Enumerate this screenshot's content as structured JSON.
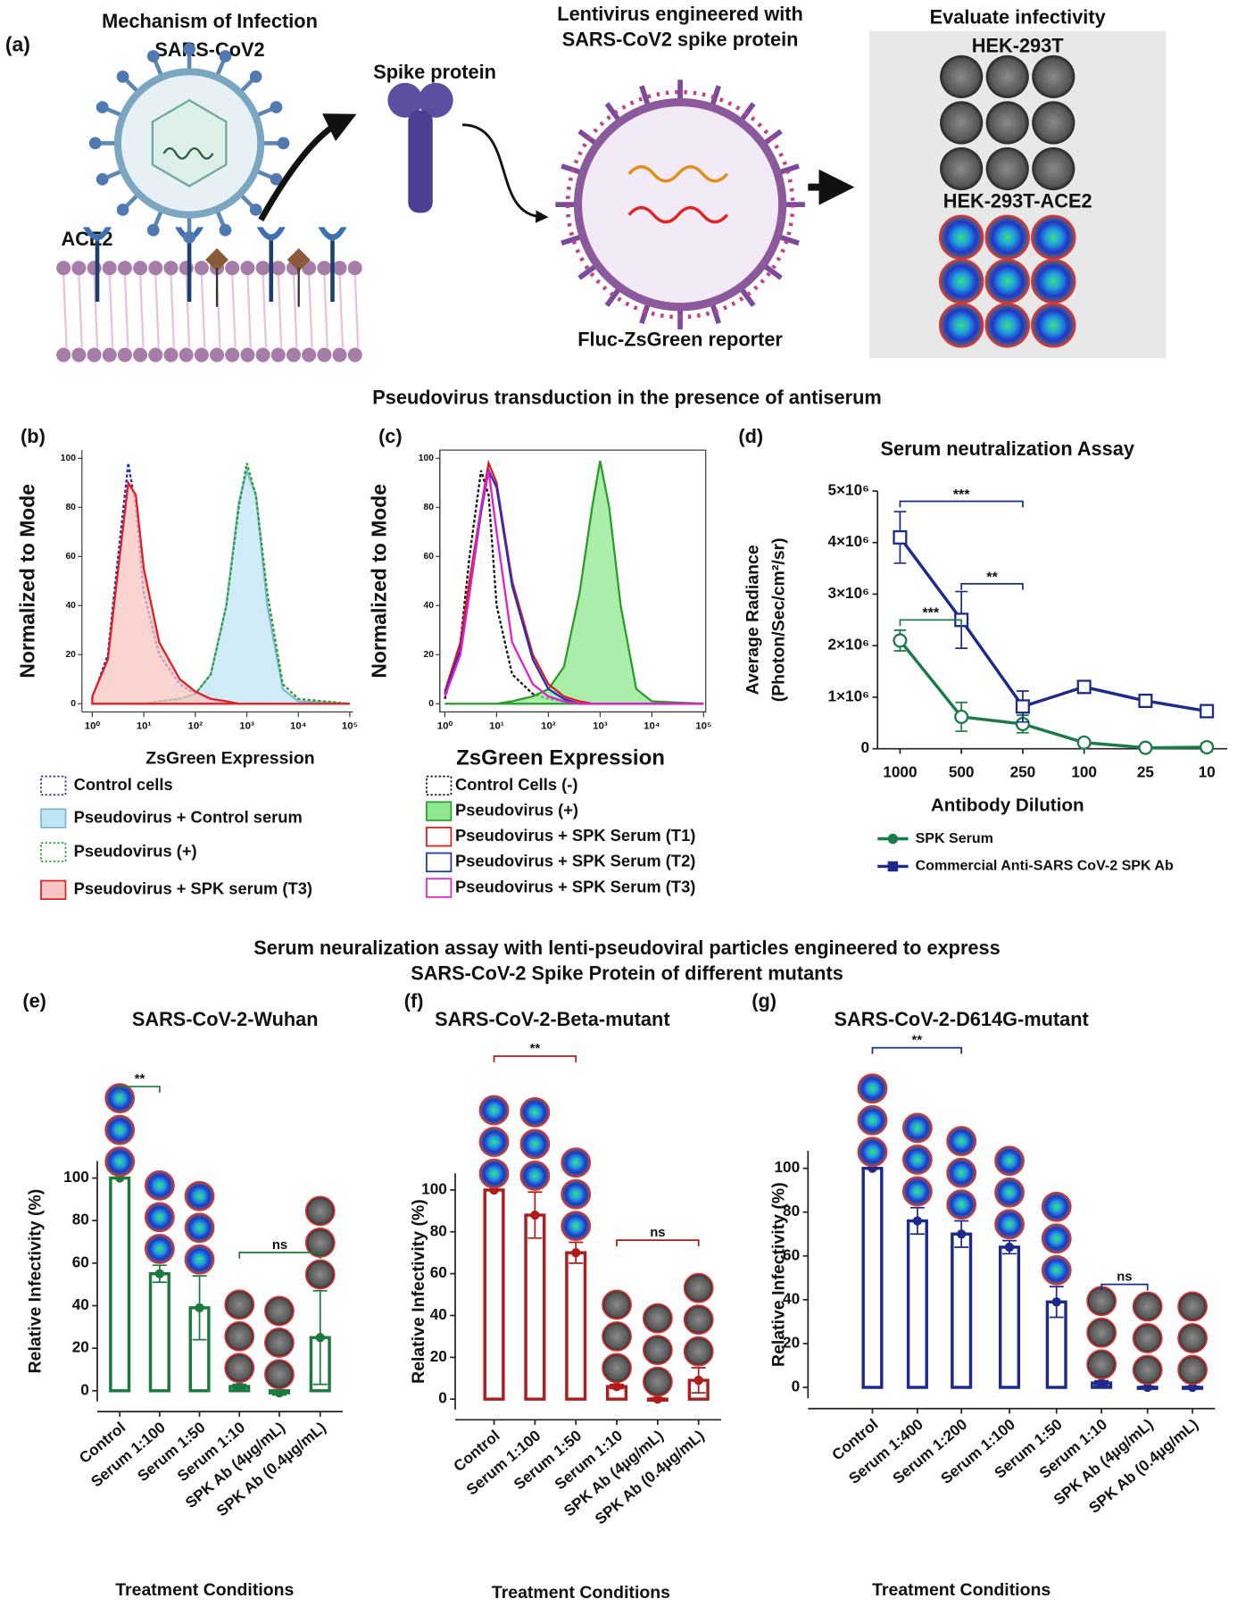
{
  "panel_a": {
    "label": "(a)",
    "left_title": [
      "Mechanism of Infection",
      "SARS-CoV2"
    ],
    "ace2": "ACE2",
    "spike": "Spike protein",
    "lenti_title": [
      "Lentivirus engineered with",
      "SARS-CoV2 spike protein"
    ],
    "reporter": "Fluc-ZsGreen reporter",
    "evaluate": "Evaluate infectivity",
    "cell1": "HEK-293T",
    "cell2": "HEK-293T-ACE2"
  },
  "section_titles": [
    "Pseudovirus transduction in the presence of antiserum",
    "Serum neuralization assay with lenti-pseudoviral particles engineered to express",
    "SARS-CoV-2 Spike Protein of different mutants"
  ],
  "chart_data": [
    {
      "type": "flow",
      "panel_label": "(b)",
      "xlabel": "ZsGreen Expression",
      "ylabel": "Normalized to Mode",
      "xlog": true,
      "x": [
        1,
        2,
        3,
        5,
        7,
        10,
        20,
        50,
        100,
        200,
        400,
        700,
        1000,
        1500,
        2500,
        5000,
        10000,
        100000
      ],
      "xlim": [
        0.63,
        115000
      ],
      "xticks": [
        {
          "value": 1,
          "label": "10⁰"
        },
        {
          "value": 10,
          "label": "10¹"
        },
        {
          "value": 100,
          "label": "10²"
        },
        {
          "value": 1000,
          "label": "10³"
        },
        {
          "value": 10000,
          "label": "10⁴"
        },
        {
          "value": 100000,
          "label": "10⁵"
        }
      ],
      "ylim": [
        0,
        100
      ],
      "yticks": [
        0,
        20,
        40,
        60,
        80,
        100
      ],
      "series": [
        {
          "name": "Control cells",
          "color": "#1f2fbf",
          "dash": true,
          "values": [
            2,
            20,
            55,
            98,
            80,
            45,
            20,
            8,
            4,
            2,
            1,
            0,
            0,
            0,
            0,
            0,
            0,
            0
          ]
        },
        {
          "name": "Pseudovirus + Control serum",
          "color": "#7fb6d8",
          "fill": "#bfe6f5",
          "values": [
            0,
            0,
            0,
            0,
            0,
            0,
            1,
            2,
            4,
            12,
            40,
            82,
            95,
            85,
            40,
            6,
            1,
            0
          ]
        },
        {
          "name": "Pseudovirus (+)",
          "color": "#2aa02a",
          "dash": true,
          "values": [
            0,
            0,
            0,
            0,
            0,
            0,
            1,
            2,
            4,
            12,
            40,
            80,
            98,
            85,
            45,
            8,
            2,
            0
          ]
        },
        {
          "name": "Pseudovirus + SPK serum (T3)",
          "color": "#e02020",
          "fill": "#f7c6c2",
          "values": [
            3,
            18,
            50,
            90,
            85,
            55,
            25,
            10,
            5,
            2,
            1,
            0,
            0,
            0,
            0,
            0,
            0,
            0
          ]
        }
      ]
    },
    {
      "type": "flow",
      "panel_label": "(c)",
      "xlabel": "ZsGreen Expression",
      "ylabel": "Normalized to Mode",
      "xlog": true,
      "x": [
        1,
        2,
        3,
        5,
        7,
        10,
        20,
        50,
        100,
        200,
        400,
        700,
        1000,
        1500,
        2500,
        5000,
        10000,
        100000
      ],
      "xlim": [
        0.8,
        110000
      ],
      "xticks": [
        {
          "value": 1,
          "label": "10⁰"
        },
        {
          "value": 10,
          "label": "10¹"
        },
        {
          "value": 100,
          "label": "10²"
        },
        {
          "value": 1000,
          "label": "10³"
        },
        {
          "value": 10000,
          "label": "10⁴"
        },
        {
          "value": 100000,
          "label": "10⁵"
        }
      ],
      "ylim": [
        0,
        100
      ],
      "yticks": [
        0,
        20,
        40,
        60,
        80,
        100
      ],
      "series": [
        {
          "name": "Control Cells (-)",
          "color": "#111111",
          "dash": true,
          "values": [
            2,
            25,
            60,
            95,
            85,
            40,
            12,
            4,
            2,
            1,
            0,
            0,
            0,
            0,
            0,
            0,
            0,
            0
          ]
        },
        {
          "name": "Pseudovirus (+)",
          "color": "#2a9d2a",
          "fill": "#8fe88f",
          "values": [
            0,
            0,
            0,
            0,
            0,
            0,
            1,
            3,
            6,
            15,
            45,
            80,
            99,
            80,
            40,
            6,
            1,
            0
          ]
        },
        {
          "name": "Pseudovirus + SPK Serum (T1)",
          "color": "#e01818",
          "values": [
            5,
            25,
            50,
            80,
            98,
            90,
            50,
            20,
            8,
            3,
            1,
            0,
            0,
            0,
            0,
            0,
            0,
            0
          ]
        },
        {
          "name": "Pseudovirus + SPK Serum (T2)",
          "color": "#1f2fbf",
          "values": [
            4,
            22,
            45,
            78,
            95,
            88,
            48,
            18,
            6,
            2,
            0,
            0,
            0,
            0,
            0,
            0,
            0,
            0
          ]
        },
        {
          "name": "Pseudovirus + SPK Serum (T3)",
          "color": "#e020d0",
          "values": [
            3,
            20,
            45,
            80,
            95,
            70,
            25,
            8,
            3,
            1,
            0,
            0,
            0,
            0,
            0,
            0,
            0,
            0
          ]
        }
      ]
    },
    {
      "type": "line",
      "panel_label": "(d)",
      "title": "Serum neutralization Assay",
      "xlabel": "Antibody Dilution",
      "ylabel": [
        "Average Radiance",
        "(Photon/Sec/cm²/sr)"
      ],
      "categories": [
        "1000",
        "500",
        "250",
        "100",
        "25",
        "10"
      ],
      "ylim": [
        0,
        5000000
      ],
      "yticks": [
        0,
        {
          "value": 1000000,
          "label": "1×10⁶"
        },
        {
          "value": 2000000,
          "label": "2×10⁶"
        },
        {
          "value": 3000000,
          "label": "3×10⁶"
        },
        {
          "value": 4000000,
          "label": "4×10⁶"
        },
        {
          "value": 5000000,
          "label": "5×10⁶"
        }
      ],
      "series": [
        {
          "name": "SPK Serum",
          "color": "#1a7a4a",
          "marker": "circle",
          "values": [
            2100000,
            620000,
            480000,
            120000,
            20000,
            30000
          ],
          "errors": [
            200000,
            280000,
            170000,
            40000,
            20000,
            80000
          ]
        },
        {
          "name": "Commercial Anti-SARS CoV-2 SPK Ab",
          "color": "#1c2a8c",
          "marker": "square",
          "values": [
            4100000,
            2500000,
            820000,
            1200000,
            930000,
            730000
          ],
          "errors": [
            500000,
            550000,
            300000,
            120000,
            80000,
            60000
          ]
        }
      ],
      "annotations": [
        {
          "text": "***",
          "from": "1000",
          "to": "250",
          "y": 4800000,
          "color": "#1c2a8c"
        },
        {
          "text": "**",
          "from": "500",
          "to": "250",
          "y": 3200000,
          "color": "#1c2a8c"
        },
        {
          "text": "***",
          "from": "1000",
          "to": "500",
          "y": 2500000,
          "color": "#1a7a4a"
        }
      ]
    },
    {
      "type": "bar",
      "panel_label": "(e)",
      "title": "SARS-CoV-2-Wuhan",
      "xlabel": "Treatment Conditions",
      "ylabel": "Relative Infectivity (%)",
      "color": "#1a7a3e",
      "categories": [
        "Control",
        "Serum 1:100",
        "Serum 1:50",
        "Serum 1:10",
        "SPK Ab (4µg/mL)",
        "SPK Ab (0.4µg/mL)"
      ],
      "values": [
        100,
        55,
        39,
        2,
        -1,
        25
      ],
      "errors": [
        0,
        4,
        15,
        1,
        1,
        22
      ],
      "ylim": [
        -5,
        108
      ],
      "yticks": [
        0,
        20,
        40,
        60,
        80,
        100
      ],
      "annotations": [
        {
          "text": "**",
          "from": "Control",
          "to": "Serum 1:100",
          "y": 143
        },
        {
          "text": "ns",
          "from": "Serum 1:10",
          "to": "SPK Ab (0.4µg/mL)",
          "y": 65
        }
      ]
    },
    {
      "type": "bar",
      "panel_label": "(f)",
      "title": "SARS-CoV-2-Beta-mutant",
      "xlabel": "Treatment Conditions",
      "ylabel": "Relative Infectivity (%)",
      "color": "#b01c1c",
      "categories": [
        "Control",
        "Serum 1:100",
        "Serum 1:50",
        "Serum 1:10",
        "SPK Ab (4µg/mL)",
        "SPK Ab (0.4µg/mL)"
      ],
      "values": [
        100,
        88,
        70,
        6,
        0,
        9
      ],
      "errors": [
        0,
        11,
        5,
        1,
        0.5,
        6
      ],
      "ylim": [
        -5,
        108
      ],
      "yticks": [
        0,
        20,
        40,
        60,
        80,
        100
      ],
      "annotations": [
        {
          "text": "**",
          "from": "Control",
          "to": "Serum 1:50",
          "y": 164
        },
        {
          "text": "ns",
          "from": "Serum 1:10",
          "to": "SPK Ab (0.4µg/mL)",
          "y": 76
        }
      ]
    },
    {
      "type": "bar",
      "panel_label": "(g)",
      "title": "SARS-CoV-2-D614G-mutant",
      "xlabel": "Treatment Conditions",
      "ylabel": "Relative Infectivity (%)",
      "color": "#1c2a8c",
      "categories": [
        "Control",
        "Serum 1:400",
        "Serum 1:200",
        "Serum 1:100",
        "Serum 1:50",
        "Serum 1:10",
        "SPK Ab (4µg/mL)",
        "SPK Ab (0.4µg/mL)"
      ],
      "values": [
        100,
        76,
        70,
        64,
        39,
        2,
        0,
        0
      ],
      "errors": [
        0,
        6,
        6,
        3,
        7,
        1,
        0.5,
        0.5
      ],
      "ylim": [
        -5,
        108
      ],
      "yticks": [
        0,
        20,
        40,
        60,
        80,
        100
      ],
      "annotations": [
        {
          "text": "**",
          "from": "Control",
          "to": "Serum 1:200",
          "y": 155
        },
        {
          "text": "ns",
          "from": "Serum 1:10",
          "to": "SPK Ab (4µg/mL)",
          "y": 47
        }
      ]
    }
  ]
}
